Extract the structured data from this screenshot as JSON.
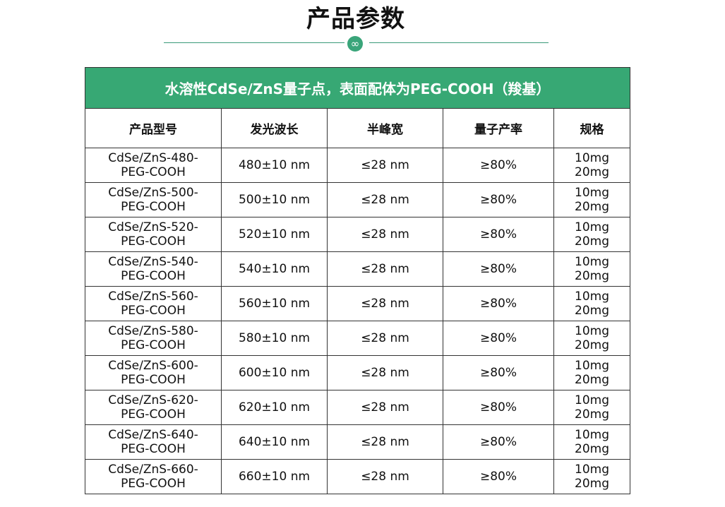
{
  "page": {
    "title": "产品参数",
    "badge_icon": "∞"
  },
  "table": {
    "caption": "水溶性CdSe/ZnS量子点，表面配体为PEG-COOH（羧基）",
    "headers": [
      "产品型号",
      "发光波长",
      "半峰宽",
      "量子产率",
      "规格"
    ],
    "rows": [
      {
        "model_line1": "CdSe/ZnS-480-",
        "model_line2": "PEG-COOH",
        "wavelength": "480±10 nm",
        "fwhm": "≤28 nm",
        "qy": "≥80%",
        "spec1": "10mg",
        "spec2": "20mg"
      },
      {
        "model_line1": "CdSe/ZnS-500-",
        "model_line2": "PEG-COOH",
        "wavelength": "500±10 nm",
        "fwhm": "≤28 nm",
        "qy": "≥80%",
        "spec1": "10mg",
        "spec2": "20mg"
      },
      {
        "model_line1": "CdSe/ZnS-520-",
        "model_line2": "PEG-COOH",
        "wavelength": "520±10 nm",
        "fwhm": "≤28 nm",
        "qy": "≥80%",
        "spec1": "10mg",
        "spec2": "20mg"
      },
      {
        "model_line1": "CdSe/ZnS-540-",
        "model_line2": "PEG-COOH",
        "wavelength": "540±10 nm",
        "fwhm": "≤28 nm",
        "qy": "≥80%",
        "spec1": "10mg",
        "spec2": "20mg"
      },
      {
        "model_line1": "CdSe/ZnS-560-",
        "model_line2": "PEG-COOH",
        "wavelength": "560±10 nm",
        "fwhm": "≤28 nm",
        "qy": "≥80%",
        "spec1": "10mg",
        "spec2": "20mg"
      },
      {
        "model_line1": "CdSe/ZnS-580-",
        "model_line2": "PEG-COOH",
        "wavelength": "580±10 nm",
        "fwhm": "≤28 nm",
        "qy": "≥80%",
        "spec1": "10mg",
        "spec2": "20mg"
      },
      {
        "model_line1": "CdSe/ZnS-600-",
        "model_line2": "PEG-COOH",
        "wavelength": "600±10 nm",
        "fwhm": "≤28 nm",
        "qy": "≥80%",
        "spec1": "10mg",
        "spec2": "20mg"
      },
      {
        "model_line1": "CdSe/ZnS-620-",
        "model_line2": "PEG-COOH",
        "wavelength": "620±10 nm",
        "fwhm": "≤28 nm",
        "qy": "≥80%",
        "spec1": "10mg",
        "spec2": "20mg"
      },
      {
        "model_line1": "CdSe/ZnS-640-",
        "model_line2": "PEG-COOH",
        "wavelength": "640±10 nm",
        "fwhm": "≤28 nm",
        "qy": "≥80%",
        "spec1": "10mg",
        "spec2": "20mg"
      },
      {
        "model_line1": "CdSe/ZnS-660-",
        "model_line2": "PEG-COOH",
        "wavelength": "660±10 nm",
        "fwhm": "≤28 nm",
        "qy": "≥80%",
        "spec1": "10mg",
        "spec2": "20mg"
      }
    ]
  },
  "colors": {
    "accent": "#37a874",
    "divider": "#3a9a78"
  }
}
